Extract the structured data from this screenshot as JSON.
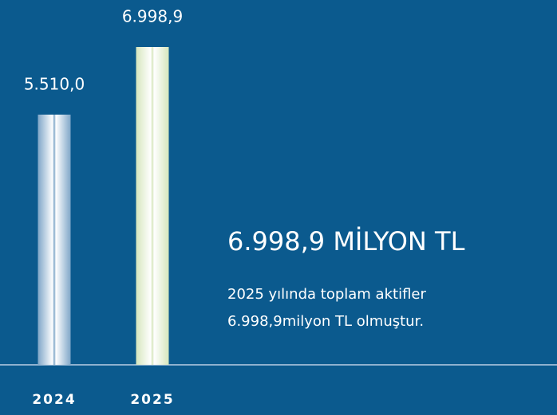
{
  "chart_data": {
    "type": "bar",
    "categories": [
      "2024",
      "2025"
    ],
    "values": [
      5510.0,
      6998.9
    ],
    "value_labels": [
      "5.510,0",
      "6.998,9"
    ],
    "colors": [
      "#7fa6c8",
      "#d6e6bd"
    ],
    "annotations": {
      "headline": "6.998,9 MİLYON TL",
      "text": [
        "2025 yılında toplam aktifler",
        "6.998,9milyon TL olmuştur."
      ]
    }
  }
}
